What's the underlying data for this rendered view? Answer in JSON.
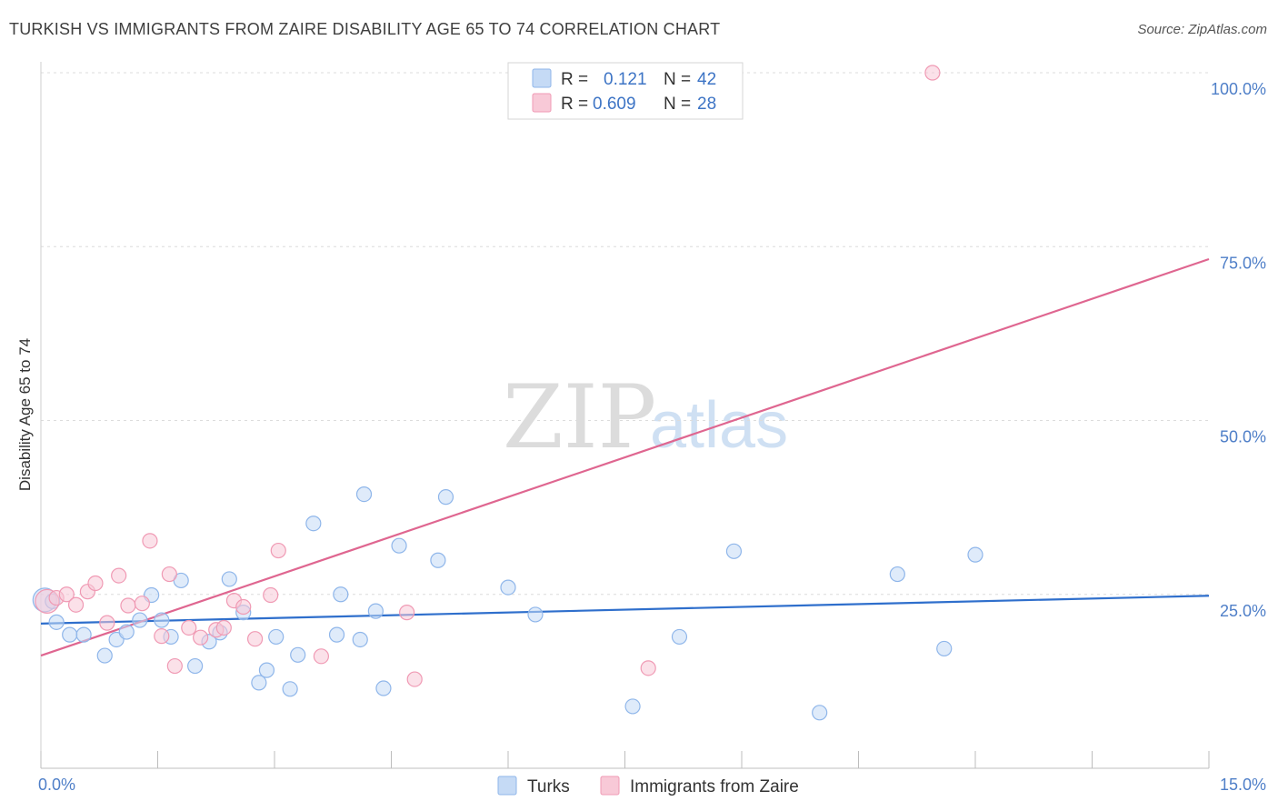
{
  "title": "TURKISH VS IMMIGRANTS FROM ZAIRE DISABILITY AGE 65 TO 74 CORRELATION CHART",
  "source": "Source: ZipAtlas.com",
  "watermark": {
    "zip": "ZIP",
    "atlas": "atlas"
  },
  "chart_data": {
    "type": "scatter",
    "title": "TURKISH VS IMMIGRANTS FROM ZAIRE DISABILITY AGE 65 TO 74 CORRELATION CHART",
    "xlabel": "",
    "ylabel": "Disability Age 65 to 74",
    "xlim": [
      0,
      15
    ],
    "ylim": [
      0,
      102
    ],
    "x_tick_labels": [
      "0.0%",
      "15.0%"
    ],
    "y_ticks": [
      25,
      50,
      75,
      100
    ],
    "y_tick_labels": [
      "25.0%",
      "50.0%",
      "75.0%",
      "100.0%"
    ],
    "grid": true,
    "legend": {
      "placement": "top-center",
      "entries": [
        {
          "r_label": "R =",
          "r_value": "0.121",
          "n_label": "N =",
          "n_value": "42"
        },
        {
          "r_label": "R =",
          "r_value": "0.609",
          "n_label": "N =",
          "n_value": "28"
        }
      ]
    },
    "series": [
      {
        "name": "Turks",
        "color": "#8fb6ea",
        "fill": "#c5daf5",
        "line_color": "#2f6fcc",
        "trend": [
          [
            0,
            20.8
          ],
          [
            15,
            24.8
          ]
        ],
        "points": [
          [
            0.05,
            24.2
          ],
          [
            0.2,
            21.0
          ],
          [
            0.37,
            19.2
          ],
          [
            0.55,
            19.2
          ],
          [
            0.82,
            16.2
          ],
          [
            0.97,
            18.5
          ],
          [
            1.1,
            19.6
          ],
          [
            1.27,
            21.3
          ],
          [
            1.42,
            24.9
          ],
          [
            1.55,
            21.3
          ],
          [
            1.67,
            18.9
          ],
          [
            1.8,
            27.0
          ],
          [
            1.98,
            14.7
          ],
          [
            2.16,
            18.2
          ],
          [
            2.3,
            19.5
          ],
          [
            2.42,
            27.2
          ],
          [
            2.6,
            22.4
          ],
          [
            2.8,
            12.3
          ],
          [
            2.9,
            14.1
          ],
          [
            3.02,
            18.9
          ],
          [
            3.2,
            11.4
          ],
          [
            3.3,
            16.3
          ],
          [
            3.5,
            35.2
          ],
          [
            3.8,
            19.2
          ],
          [
            3.85,
            25.0
          ],
          [
            4.1,
            18.5
          ],
          [
            4.15,
            39.4
          ],
          [
            4.3,
            22.6
          ],
          [
            4.4,
            11.5
          ],
          [
            4.6,
            32.0
          ],
          [
            5.1,
            29.9
          ],
          [
            5.2,
            39.0
          ],
          [
            6.0,
            26.0
          ],
          [
            6.35,
            22.1
          ],
          [
            7.6,
            8.9
          ],
          [
            8.2,
            18.9
          ],
          [
            8.9,
            31.2
          ],
          [
            10.0,
            8.0
          ],
          [
            11.0,
            27.9
          ],
          [
            11.6,
            17.2
          ],
          [
            12.0,
            30.7
          ],
          [
            0.15,
            24.0
          ]
        ]
      },
      {
        "name": "Immigrants from Zaire",
        "color": "#f09ab4",
        "fill": "#f8c9d7",
        "line_color": "#df6690",
        "trend": [
          [
            0,
            16.2
          ],
          [
            15,
            73.2
          ]
        ],
        "points": [
          [
            0.08,
            24.0
          ],
          [
            0.2,
            24.5
          ],
          [
            0.33,
            25.0
          ],
          [
            0.45,
            23.5
          ],
          [
            0.6,
            25.4
          ],
          [
            0.7,
            26.6
          ],
          [
            0.85,
            20.9
          ],
          [
            1.0,
            27.7
          ],
          [
            1.12,
            23.4
          ],
          [
            1.3,
            23.7
          ],
          [
            1.4,
            32.7
          ],
          [
            1.55,
            19.0
          ],
          [
            1.65,
            27.9
          ],
          [
            1.72,
            14.7
          ],
          [
            1.9,
            20.2
          ],
          [
            2.05,
            18.8
          ],
          [
            2.25,
            19.9
          ],
          [
            2.35,
            20.2
          ],
          [
            2.48,
            24.1
          ],
          [
            2.6,
            23.2
          ],
          [
            2.75,
            18.6
          ],
          [
            2.95,
            24.9
          ],
          [
            3.05,
            31.3
          ],
          [
            3.6,
            16.1
          ],
          [
            4.7,
            22.4
          ],
          [
            4.8,
            12.8
          ],
          [
            7.8,
            14.4
          ],
          [
            11.45,
            100.0
          ]
        ]
      }
    ]
  }
}
